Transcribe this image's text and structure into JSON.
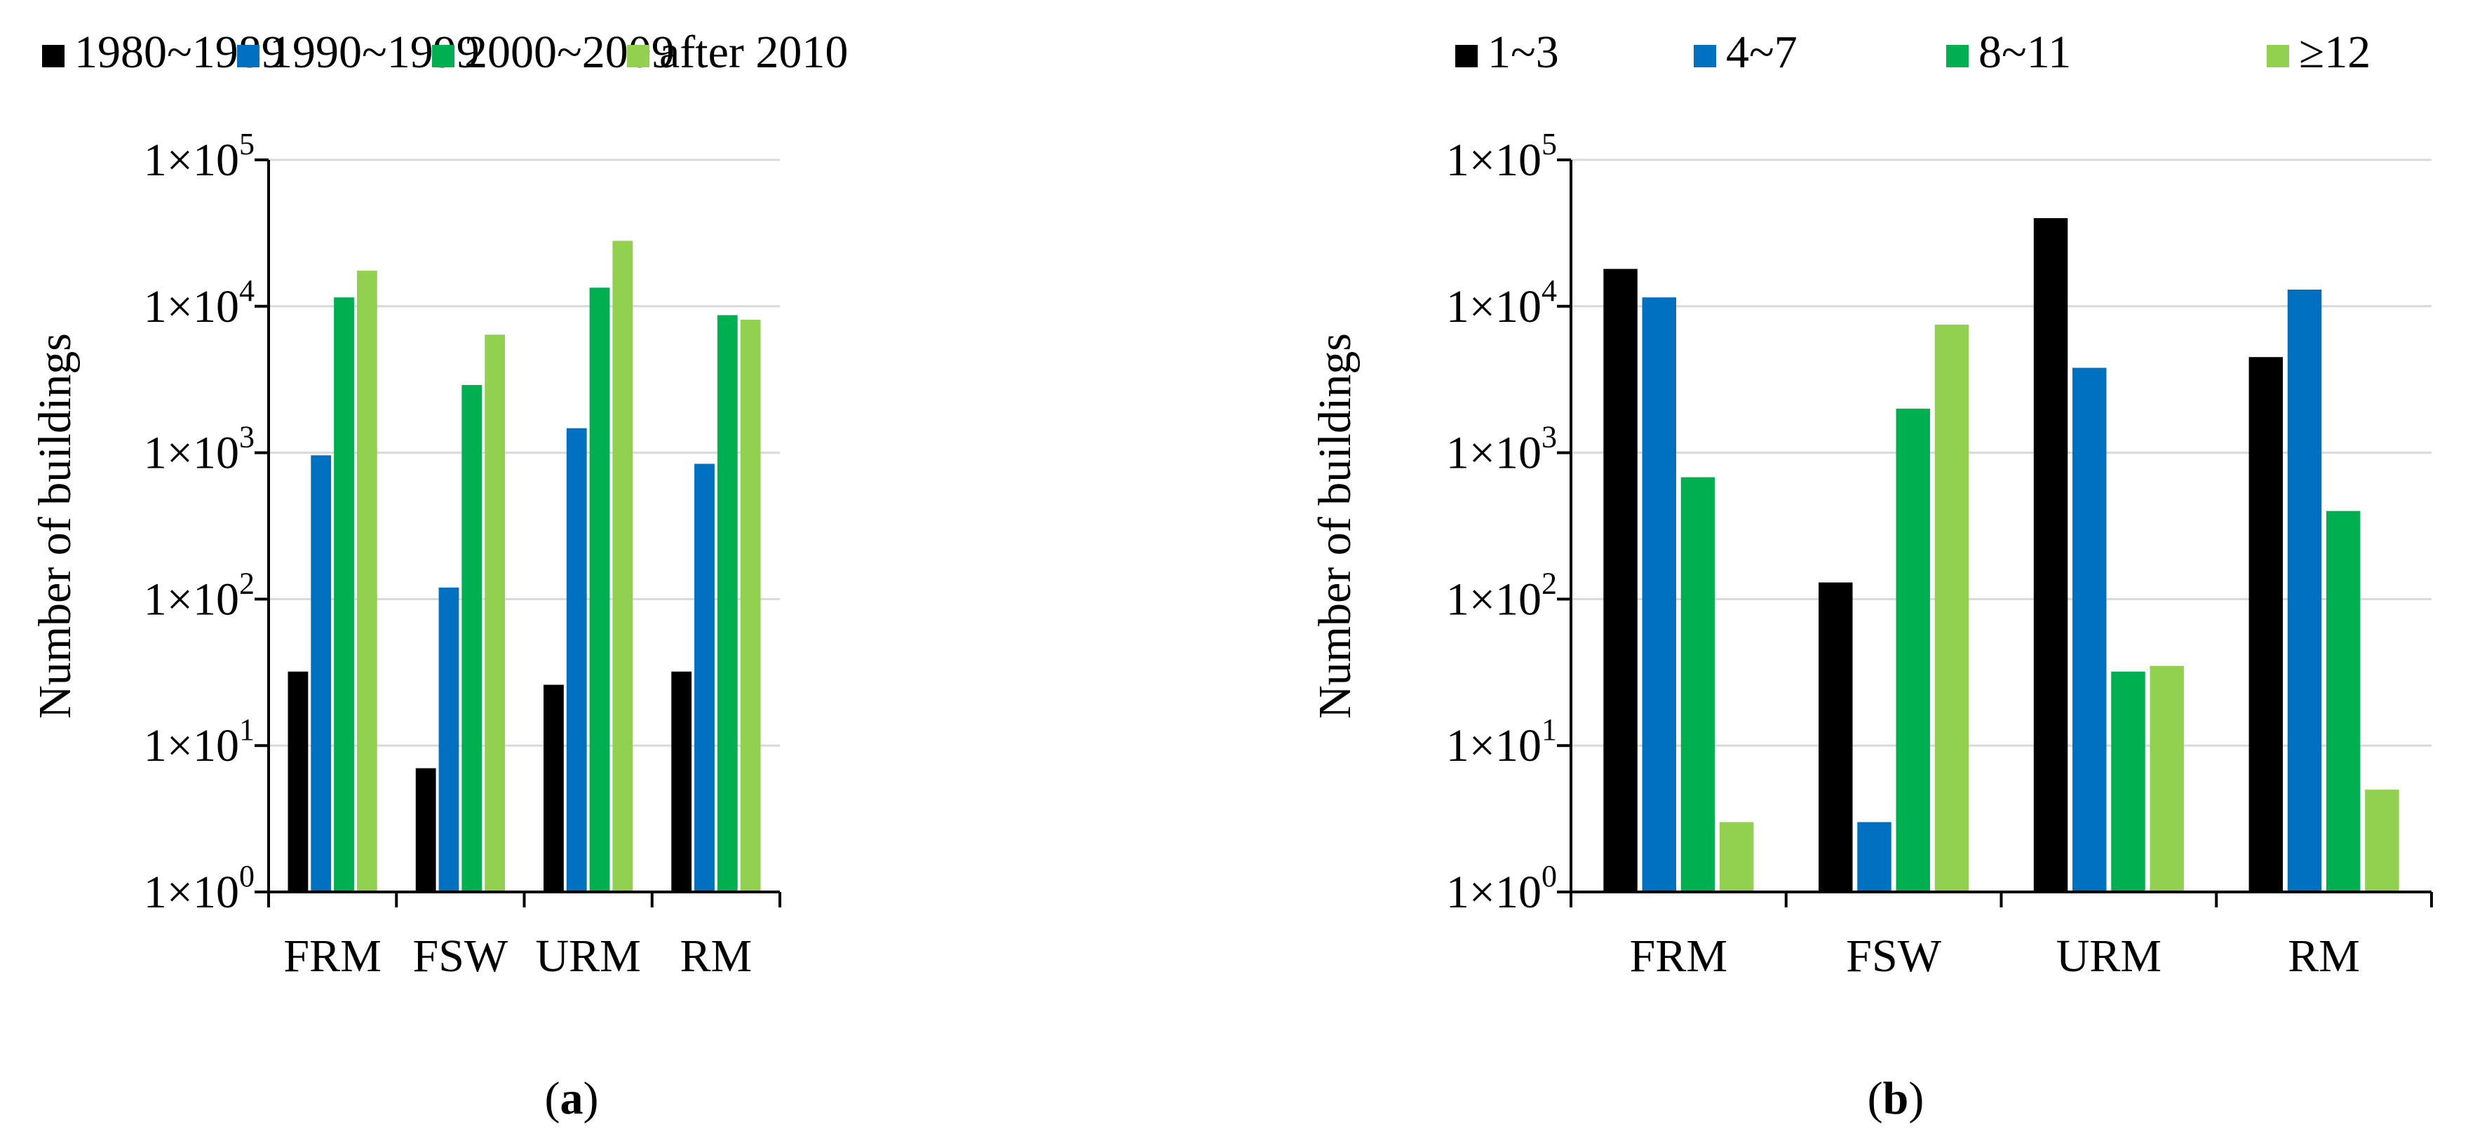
{
  "chart_data": [
    {
      "type": "bar",
      "panel_label": "a",
      "ylabel": "Number of buildings",
      "yscale": "log",
      "ylim": [
        1,
        100000
      ],
      "y_ticks": [
        {
          "value": 1,
          "base": "1×10",
          "exp": "0"
        },
        {
          "value": 10,
          "base": "1×10",
          "exp": "1"
        },
        {
          "value": 100,
          "base": "1×10",
          "exp": "2"
        },
        {
          "value": 1000,
          "base": "1×10",
          "exp": "3"
        },
        {
          "value": 10000,
          "base": "1×10",
          "exp": "4"
        },
        {
          "value": 100000,
          "base": "1×10",
          "exp": "5"
        }
      ],
      "grid": true,
      "legend_position": "top",
      "categories": [
        "FRM",
        "FSW",
        "URM",
        "RM"
      ],
      "series": [
        {
          "name": "1980~1989",
          "color": "#000000",
          "values": [
            32,
            7,
            26,
            32
          ]
        },
        {
          "name": "1990~1999",
          "color": "#0070C0",
          "values": [
            960,
            120,
            1470,
            840
          ]
        },
        {
          "name": "2000~2009",
          "color": "#00B050",
          "values": [
            11500,
            2900,
            13400,
            8700
          ]
        },
        {
          "name": "after 2010",
          "color": "#92D050",
          "values": [
            17500,
            6400,
            28000,
            8100
          ]
        }
      ]
    },
    {
      "type": "bar",
      "panel_label": "b",
      "ylabel": "Number of buildings",
      "yscale": "log",
      "ylim": [
        1,
        100000
      ],
      "y_ticks": [
        {
          "value": 1,
          "base": "1×10",
          "exp": "0"
        },
        {
          "value": 10,
          "base": "1×10",
          "exp": "1"
        },
        {
          "value": 100,
          "base": "1×10",
          "exp": "2"
        },
        {
          "value": 1000,
          "base": "1×10",
          "exp": "3"
        },
        {
          "value": 10000,
          "base": "1×10",
          "exp": "4"
        },
        {
          "value": 100000,
          "base": "1×10",
          "exp": "5"
        }
      ],
      "grid": true,
      "legend_position": "top",
      "categories": [
        "FRM",
        "FSW",
        "URM",
        "RM"
      ],
      "series": [
        {
          "name": "1~3",
          "color": "#000000",
          "values": [
            18000,
            130,
            40000,
            4500
          ]
        },
        {
          "name": "4~7",
          "color": "#0070C0",
          "values": [
            11500,
            3,
            3800,
            13000
          ]
        },
        {
          "name": "8~11",
          "color": "#00B050",
          "values": [
            680,
            2000,
            32,
            400
          ]
        },
        {
          "name": "≥12",
          "color": "#92D050",
          "values": [
            3,
            7500,
            35,
            5
          ]
        }
      ]
    }
  ]
}
